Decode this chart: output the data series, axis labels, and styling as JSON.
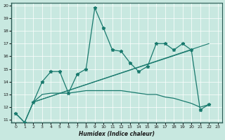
{
  "xlabel": "Humidex (Indice chaleur)",
  "xlim": [
    -0.5,
    23.5
  ],
  "ylim": [
    10.8,
    20.2
  ],
  "yticks": [
    11,
    12,
    13,
    14,
    15,
    16,
    17,
    18,
    19,
    20
  ],
  "xticks": [
    0,
    1,
    2,
    3,
    4,
    5,
    6,
    7,
    8,
    9,
    10,
    11,
    12,
    13,
    14,
    15,
    16,
    17,
    18,
    19,
    20,
    21,
    22,
    23
  ],
  "bg_color": "#c8e8e0",
  "grid_color": "#b0d8d0",
  "line_color": "#1a7a6e",
  "main_line": {
    "x": [
      0,
      1,
      2,
      3,
      4,
      5,
      6,
      7,
      8,
      9,
      10,
      11,
      12,
      13,
      14,
      15,
      16,
      17,
      18,
      19,
      20,
      21,
      22
    ],
    "y": [
      11.5,
      10.8,
      12.4,
      14.0,
      14.8,
      14.8,
      13.1,
      14.6,
      15.0,
      19.8,
      18.2,
      16.5,
      16.4,
      15.5,
      14.8,
      15.2,
      17.0,
      17.0,
      16.5,
      17.0,
      16.5,
      11.8,
      12.2
    ]
  },
  "lower_line": {
    "x": [
      0,
      1,
      2,
      3,
      4,
      5,
      6,
      7,
      8,
      9,
      10,
      11,
      12,
      13,
      14,
      15,
      16,
      17,
      18,
      19,
      20,
      21,
      22
    ],
    "y": [
      11.5,
      10.8,
      12.4,
      13.0,
      13.1,
      13.1,
      13.1,
      13.2,
      13.3,
      13.3,
      13.3,
      13.3,
      13.3,
      13.2,
      13.1,
      13.0,
      13.0,
      12.8,
      12.7,
      12.5,
      12.3,
      12.0,
      12.2
    ]
  },
  "trend1": {
    "x": [
      2,
      22
    ],
    "y": [
      12.4,
      17.0
    ]
  },
  "trend2": {
    "x": [
      2,
      20
    ],
    "y": [
      12.4,
      16.5
    ]
  }
}
